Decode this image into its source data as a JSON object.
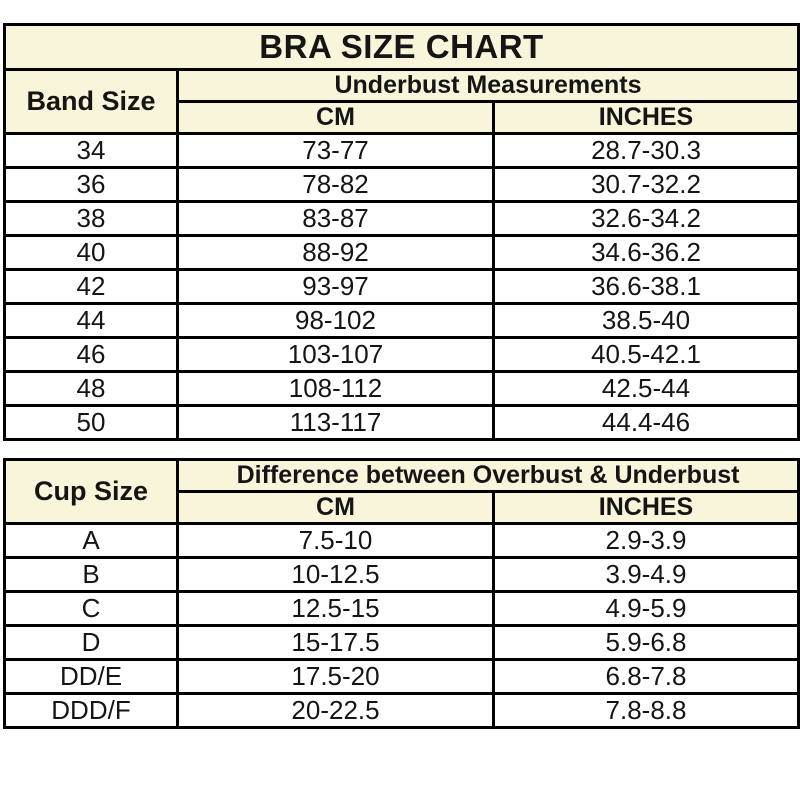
{
  "colors": {
    "page_bg": "#FFFFFF",
    "panel_bg": "#F9F5DA",
    "row_bg": "#FFFFFF",
    "border": "#000000",
    "text": "#151515"
  },
  "title": "BRA SIZE CHART",
  "band_table": {
    "row_header": "Band Size",
    "group_header": "Underbust Measurements",
    "columns": [
      "CM",
      "INCHES"
    ],
    "rows": [
      {
        "band": "34",
        "cm": "73-77",
        "inches": "28.7-30.3"
      },
      {
        "band": "36",
        "cm": "78-82",
        "inches": "30.7-32.2"
      },
      {
        "band": "38",
        "cm": "83-87",
        "inches": "32.6-34.2"
      },
      {
        "band": "40",
        "cm": "88-92",
        "inches": "34.6-36.2"
      },
      {
        "band": "42",
        "cm": "93-97",
        "inches": "36.6-38.1"
      },
      {
        "band": "44",
        "cm": "98-102",
        "inches": "38.5-40"
      },
      {
        "band": "46",
        "cm": "103-107",
        "inches": "40.5-42.1"
      },
      {
        "band": "48",
        "cm": "108-112",
        "inches": "42.5-44"
      },
      {
        "band": "50",
        "cm": "113-117",
        "inches": "44.4-46"
      }
    ]
  },
  "cup_table": {
    "row_header": "Cup Size",
    "group_header": "Difference between Overbust & Underbust",
    "columns": [
      "CM",
      "INCHES"
    ],
    "rows": [
      {
        "cup": "A",
        "cm": "7.5-10",
        "inches": "2.9-3.9"
      },
      {
        "cup": "B",
        "cm": "10-12.5",
        "inches": "3.9-4.9"
      },
      {
        "cup": "C",
        "cm": "12.5-15",
        "inches": "4.9-5.9"
      },
      {
        "cup": "D",
        "cm": "15-17.5",
        "inches": "5.9-6.8"
      },
      {
        "cup": "DD/E",
        "cm": "17.5-20",
        "inches": "6.8-7.8"
      },
      {
        "cup": "DDD/F",
        "cm": "20-22.5",
        "inches": "7.8-8.8"
      }
    ]
  }
}
